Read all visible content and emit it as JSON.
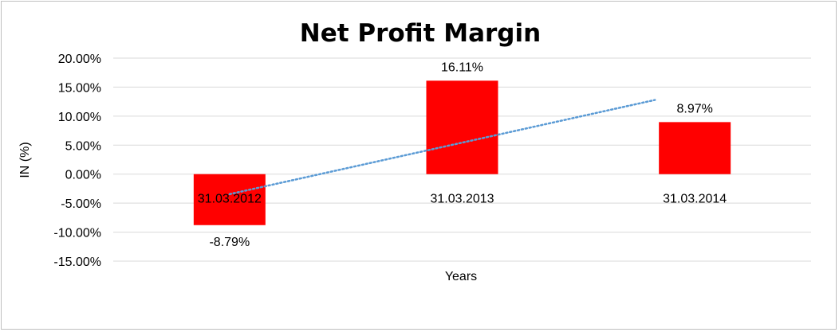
{
  "chart_data": {
    "type": "bar",
    "title": "Net Profit Margin",
    "xlabel": "Years",
    "ylabel": "IN (%)",
    "categories": [
      "31.03.2012",
      "31.03.2013",
      "31.03.2014"
    ],
    "values": [
      -8.79,
      16.11,
      8.97
    ],
    "data_labels": [
      "-8.79%",
      "16.11%",
      "8.97%"
    ],
    "ylim": [
      -15,
      20
    ],
    "yticks": [
      20,
      15,
      10,
      5,
      0,
      -5,
      -10,
      -15
    ],
    "ytick_labels": [
      "20.00%",
      "15.00%",
      "10.00%",
      "5.00%",
      "0.00%",
      "-5.00%",
      "-10.00%",
      "-15.00%"
    ],
    "bar_color": "#ff0000",
    "trendline": {
      "type": "linear",
      "color": "#5b9bd5",
      "style": "dotted"
    },
    "grid": true,
    "legend": "none"
  }
}
